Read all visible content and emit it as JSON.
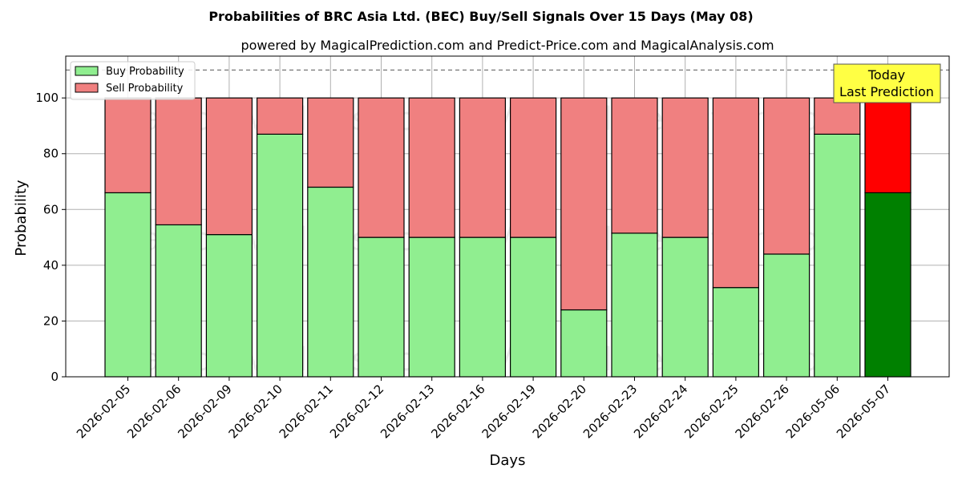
{
  "chart_data": {
    "type": "bar",
    "stacked": true,
    "title": "Probabilities of BRC Asia Ltd. (BEC) Buy/Sell Signals Over 15 Days (May 08)",
    "subtitle": "powered by MagicalPrediction.com and Predict-Price.com and MagicalAnalysis.com",
    "xlabel": "Days",
    "ylabel": "Probability",
    "ylim": [
      0,
      115
    ],
    "yticks": [
      0,
      20,
      40,
      60,
      80,
      100
    ],
    "grid": true,
    "legend_position": "top-left",
    "reference_line": 110,
    "categories": [
      "2026-02-05",
      "2026-02-06",
      "2026-02-09",
      "2026-02-10",
      "2026-02-11",
      "2026-02-12",
      "2026-02-13",
      "2026-02-16",
      "2026-02-19",
      "2026-02-20",
      "2026-02-23",
      "2026-02-24",
      "2026-02-25",
      "2026-02-26",
      "2026-05-06",
      "2026-05-07"
    ],
    "series": [
      {
        "name": "Buy Probability",
        "color": "#90ee90",
        "highlight_color": "#008000",
        "values": [
          66,
          54.5,
          51,
          87,
          68,
          50,
          50,
          50,
          50,
          24,
          51.5,
          50,
          32,
          44,
          87,
          66
        ]
      },
      {
        "name": "Sell Probability",
        "color": "#f08080",
        "highlight_color": "#ff0000",
        "values": [
          34,
          45.5,
          49,
          13,
          32,
          50,
          50,
          50,
          50,
          76,
          48.5,
          50,
          68,
          56,
          13,
          34
        ]
      }
    ],
    "highlight_index": 15,
    "annotation": {
      "lines": [
        "Today",
        "Last Prediction"
      ],
      "color": "#ffff44"
    },
    "watermarks": [
      "MagicalAnalysis.com",
      "MagicalPrediction.com"
    ]
  }
}
